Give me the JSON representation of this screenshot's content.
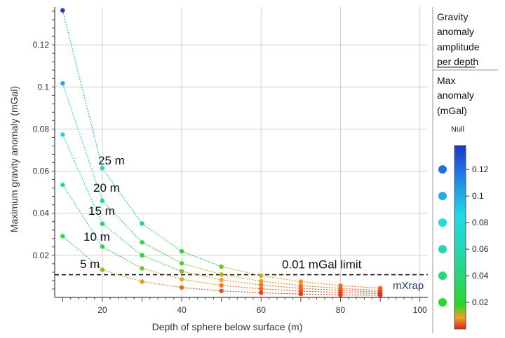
{
  "chart_data": {
    "type": "line",
    "xlabel": "Depth of sphere below surface (m)",
    "ylabel": "Maximum gravity anomaly (mGal)",
    "xlim": [
      8,
      102
    ],
    "ylim": [
      0,
      0.138
    ],
    "xticks": [
      20,
      40,
      60,
      80,
      100
    ],
    "yticks": [
      0.02,
      0.04,
      0.06,
      0.08,
      0.1,
      0.12
    ],
    "grid": true,
    "x": [
      10,
      20,
      30,
      40,
      50,
      60,
      70,
      80,
      90
    ],
    "series": [
      {
        "name": "25 m",
        "values": [
          0.1364,
          0.0614,
          0.0351,
          0.0219,
          0.0146,
          0.0103,
          0.0075,
          0.0056,
          0.0044
        ]
      },
      {
        "name": "20 m",
        "values": [
          0.1017,
          0.0459,
          0.0262,
          0.0162,
          0.0109,
          0.0077,
          0.0056,
          0.0043,
          0.0033
        ]
      },
      {
        "name": "15 m",
        "values": [
          0.0774,
          0.035,
          0.02,
          0.0124,
          0.0083,
          0.0059,
          0.0043,
          0.0033,
          0.0026
        ]
      },
      {
        "name": "10 m",
        "values": [
          0.0535,
          0.0241,
          0.0138,
          0.0086,
          0.0057,
          0.0041,
          0.003,
          0.0023,
          0.0018
        ]
      },
      {
        "name": "5 m",
        "values": [
          0.0291,
          0.0131,
          0.0075,
          0.0047,
          0.0031,
          0.0022,
          0.0016,
          0.0012,
          0.001
        ]
      }
    ],
    "reference_line": {
      "y": 0.0108,
      "label": "0.01 mGal limit"
    },
    "legend": {
      "title_1": [
        "Gravity",
        "anomaly",
        "amplitude",
        "per depth"
      ],
      "title_2": [
        "Max",
        "anomaly",
        "(mGal)"
      ],
      "null_label": "Null",
      "colorbar_ticks": [
        0.02,
        0.04,
        0.06,
        0.08,
        0.1,
        0.12
      ],
      "colorbar_range": [
        0,
        0.138
      ],
      "size_dot_values": [
        0.12,
        0.1,
        0.08,
        0.06,
        0.04,
        0.02
      ],
      "placement": "right"
    },
    "watermark": "mXrap"
  }
}
